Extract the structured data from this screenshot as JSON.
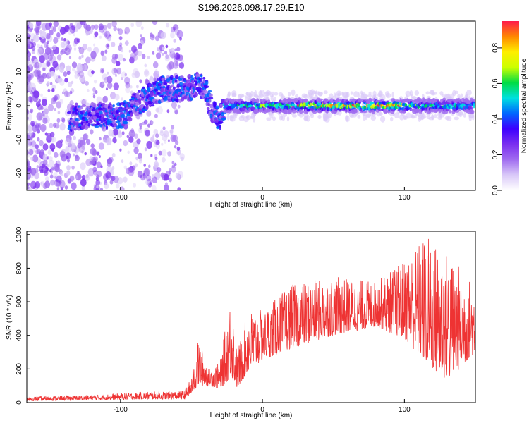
{
  "figure_title": "S196.2026.098.17.29.E10",
  "chart_data": [
    {
      "type": "heatmap",
      "title": "S196.2026.098.17.29.E10",
      "xlabel": "Height of straight line (km)",
      "ylabel": "Frequency (Hz)",
      "xlim": [
        -166,
        150
      ],
      "ylim": [
        -25,
        25
      ],
      "xticks": [
        -100,
        0,
        100
      ],
      "yticks": [
        -20,
        -10,
        0,
        10,
        20
      ],
      "colorbar": {
        "label": "Normalized spectral amplitude",
        "range": [
          0.0,
          0.95
        ],
        "ticks": [
          0.0,
          0.2,
          0.4,
          0.6,
          0.8
        ],
        "colormap": [
          "#ffffff",
          "#d9c8f8",
          "#a06cf0",
          "#7a2ef0",
          "#3c00ff",
          "#0066ff",
          "#00e0e0",
          "#00dd44",
          "#ccff00",
          "#ffee00",
          "#ff8800",
          "#ff1a4a"
        ]
      },
      "ridge": [
        {
          "x": -160,
          "y": -4
        },
        {
          "x": -140,
          "y": -4
        },
        {
          "x": -120,
          "y": -3
        },
        {
          "x": -100,
          "y": -3
        },
        {
          "x": -90,
          "y": 0
        },
        {
          "x": -80,
          "y": 3
        },
        {
          "x": -70,
          "y": 5
        },
        {
          "x": -55,
          "y": 5
        },
        {
          "x": -45,
          "y": 6
        },
        {
          "x": -40,
          "y": 5
        },
        {
          "x": -35,
          "y": -2
        },
        {
          "x": -30,
          "y": -4
        },
        {
          "x": -27,
          "y": 0
        },
        {
          "x": 0,
          "y": 0
        },
        {
          "x": 50,
          "y": 0
        },
        {
          "x": 100,
          "y": 0
        },
        {
          "x": 148,
          "y": 0
        }
      ]
    },
    {
      "type": "line",
      "xlabel": "Height of straight line (km)",
      "ylabel": "SNR (10 * v/v)",
      "xlim": [
        -166,
        150
      ],
      "ylim": [
        0,
        1020
      ],
      "xticks": [
        -100,
        0,
        100
      ],
      "yticks": [
        0,
        200,
        400,
        600,
        800,
        1000
      ],
      "series": [
        {
          "name": "SNR",
          "color": "#ee3333",
          "envelope": [
            {
              "x": -166,
              "lo": 10,
              "hi": 35
            },
            {
              "x": -120,
              "lo": 15,
              "hi": 45
            },
            {
              "x": -80,
              "lo": 20,
              "hi": 65
            },
            {
              "x": -55,
              "lo": 20,
              "hi": 70
            },
            {
              "x": -50,
              "lo": 50,
              "hi": 150
            },
            {
              "x": -45,
              "lo": 100,
              "hi": 390
            },
            {
              "x": -38,
              "lo": 100,
              "hi": 200
            },
            {
              "x": -30,
              "lo": 80,
              "hi": 240
            },
            {
              "x": -22,
              "lo": 150,
              "hi": 660
            },
            {
              "x": -18,
              "lo": 80,
              "hi": 300
            },
            {
              "x": -10,
              "lo": 180,
              "hi": 550
            },
            {
              "x": 0,
              "lo": 250,
              "hi": 550
            },
            {
              "x": 20,
              "lo": 320,
              "hi": 700
            },
            {
              "x": 50,
              "lo": 400,
              "hi": 750
            },
            {
              "x": 80,
              "lo": 450,
              "hi": 720
            },
            {
              "x": 100,
              "lo": 380,
              "hi": 850
            },
            {
              "x": 115,
              "lo": 230,
              "hi": 1010
            },
            {
              "x": 130,
              "lo": 120,
              "hi": 900
            },
            {
              "x": 150,
              "lo": 300,
              "hi": 700
            }
          ]
        }
      ]
    }
  ]
}
